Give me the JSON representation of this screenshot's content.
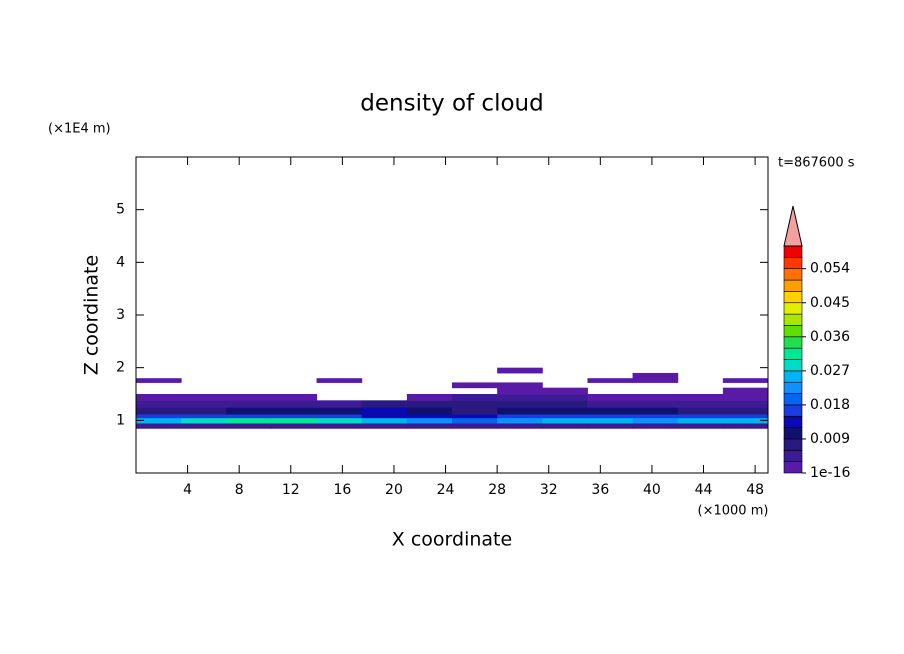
{
  "chart_data": {
    "type": "contour",
    "title": "density of cloud",
    "x_label": "X coordinate",
    "x_unit": "(×1000 m)",
    "y_label": "Z coordinate",
    "y_unit": "(×1E4 m)",
    "time_label": "t=867600 s",
    "xlim": [
      0,
      49
    ],
    "ylim": [
      0,
      6
    ],
    "xticks": [
      4,
      8,
      12,
      16,
      20,
      24,
      28,
      32,
      36,
      40,
      44,
      48
    ],
    "yticks": [
      1,
      2,
      3,
      4,
      5
    ],
    "x_edges": [
      0,
      3.5,
      7,
      10.5,
      14,
      17.5,
      21,
      24.5,
      28,
      31.5,
      35,
      38.5,
      42,
      45.5,
      49
    ],
    "y_edges": [
      0.85,
      0.95,
      1.05,
      1.12,
      1.25,
      1.38,
      1.5,
      1.62,
      1.72,
      1.8,
      1.9,
      2.0
    ],
    "values": [
      [
        0.005,
        0.005,
        0.005,
        0.005,
        0.005,
        0.005,
        0.005,
        0.005,
        0.005,
        0.005,
        0.005,
        0.005,
        0.005,
        0.005
      ],
      [
        0.026,
        0.029,
        0.031,
        0.031,
        0.028,
        0.024,
        0.022,
        0.02,
        0.021,
        0.024,
        0.025,
        0.023,
        0.024,
        0.024
      ],
      [
        0.016,
        0.017,
        0.018,
        0.017,
        0.016,
        0.014,
        0.014,
        0.013,
        0.015,
        0.016,
        0.015,
        0.016,
        0.016,
        0.016
      ],
      [
        0.009,
        0.009,
        0.01,
        0.01,
        0.011,
        0.012,
        0.011,
        0.009,
        0.01,
        0.011,
        0.01,
        0.01,
        0.009,
        0.009
      ],
      [
        0.004,
        0.004,
        0.004,
        0.004,
        0.005,
        0.006,
        0.006,
        0.007,
        0.008,
        0.007,
        0.005,
        0.004,
        0.004,
        0.004
      ],
      [
        0.002,
        0.002,
        0.002,
        0.002,
        null,
        null,
        0.002,
        0.003,
        0.003,
        0.003,
        0.002,
        0.002,
        0.002,
        0.002
      ],
      [
        null,
        null,
        null,
        null,
        null,
        null,
        null,
        null,
        0.001,
        0.001,
        null,
        null,
        null,
        0.001
      ],
      [
        null,
        null,
        null,
        null,
        null,
        null,
        null,
        0.001,
        0.001,
        null,
        null,
        null,
        null,
        null
      ],
      [
        0.001,
        null,
        null,
        null,
        0.001,
        null,
        null,
        null,
        null,
        null,
        0.001,
        0.001,
        null,
        0.001
      ],
      [
        null,
        null,
        null,
        null,
        null,
        null,
        null,
        null,
        null,
        null,
        null,
        0.001,
        null,
        null
      ],
      [
        null,
        null,
        null,
        null,
        null,
        null,
        null,
        null,
        0.001,
        null,
        null,
        null,
        null,
        null
      ]
    ],
    "level_step": 0.003,
    "colors": [
      "#5a1aa8",
      "#3d1a96",
      "#2a1a80",
      "#101070",
      "#0a0ab0",
      "#1a3ce0",
      "#0a64f0",
      "#1090ff",
      "#00b4f0",
      "#00dcc8",
      "#00e896",
      "#20e050",
      "#60e000",
      "#a8e800",
      "#e0f000",
      "#ffd000",
      "#ffa000",
      "#ff7000",
      "#ff3800",
      "#f00000"
    ],
    "extend_color": "#f4a0a0",
    "clim": [
      0,
      0.06
    ],
    "colorbar_ticks": [
      {
        "value": 1e-16,
        "label": "1e-16"
      },
      0.009,
      0.018,
      0.027,
      0.036,
      0.045,
      0.054
    ]
  }
}
